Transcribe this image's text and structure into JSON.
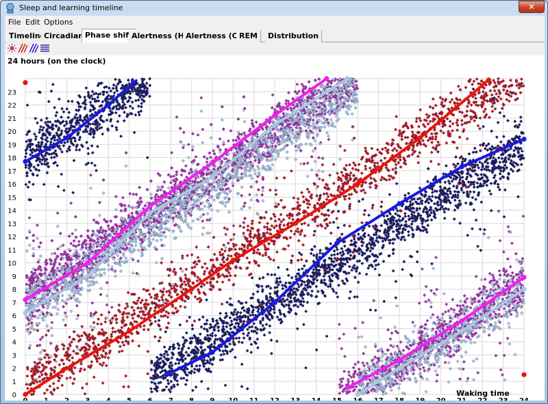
{
  "window": {
    "title": "Sleep and learning timeline",
    "close_label": "✕"
  },
  "menu": [
    "File",
    "Edit",
    "Options"
  ],
  "tabs": [
    "Timeline",
    "Circadian",
    "Phase shift",
    "Alertness (H)",
    "Alertness (C)",
    "REM",
    "Distribution"
  ],
  "active_tab": "Phase shift",
  "toolbar": [
    "sun-icon",
    "red-hatch-icon",
    "blue-hatch-icon",
    "lines-icon"
  ],
  "chart_data": {
    "type": "scatter",
    "title": "24 hours (on the clock)",
    "xlabel": "Waking time",
    "ylabel": "",
    "xlim": [
      0,
      24
    ],
    "ylim": [
      0,
      24
    ],
    "x_ticks": [
      0,
      1,
      2,
      3,
      4,
      5,
      6,
      7,
      8,
      9,
      10,
      11,
      12,
      13,
      14,
      15,
      16,
      17,
      18,
      19,
      20,
      21,
      22,
      23,
      24
    ],
    "y_ticks": [
      0,
      1,
      2,
      3,
      4,
      5,
      6,
      7,
      8,
      9,
      10,
      11,
      12,
      13,
      14,
      15,
      16,
      17,
      18,
      19,
      20,
      21,
      22,
      23
    ],
    "grid": true,
    "colors": {
      "red": "#e8160c",
      "blue": "#1a1ae0",
      "magenta": "#ee22ee",
      "lightblue": "#a9c6e0",
      "navy": "#1a1a60",
      "darkred": "#c01414",
      "purple": "#b030b0"
    },
    "series": [
      {
        "color": "red",
        "segments": [
          {
            "x": [
              0,
              1.8,
              5,
              8,
              10,
              13,
              16,
              19,
              22.3
            ],
            "y": [
              0,
              1.8,
              4.8,
              8,
              10.2,
              13,
              16,
              19.5,
              23.9
            ]
          },
          {
            "x": [
              0
            ],
            "y": [
              23.7
            ]
          },
          {
            "x": [
              24
            ],
            "y": [
              1.5
            ]
          }
        ]
      },
      {
        "color": "blue",
        "segments": [
          {
            "x": [
              0,
              2,
              4,
              5.2
            ],
            "y": [
              17.7,
              19.5,
              22,
              23.7
            ]
          },
          {
            "x": [
              6.8,
              9,
              12,
              15,
              18,
              21,
              24
            ],
            "y": [
              1.5,
              3.2,
              7,
              11.5,
              14.5,
              17.3,
              19.4
            ]
          }
        ]
      },
      {
        "color": "magenta",
        "segments": [
          {
            "x": [
              0,
              3,
              6,
              9,
              12,
              14.5
            ],
            "y": [
              7.2,
              10,
              14.3,
              17.6,
              21.2,
              24
            ]
          },
          {
            "x": [
              15.5,
              18,
              21,
              24
            ],
            "y": [
              0.5,
              2.6,
              5.6,
              8.9
            ]
          }
        ]
      },
      {
        "color": "lightblue",
        "segments": [
          {
            "x": [
              0,
              3,
              6,
              9,
              12,
              15.5
            ],
            "y": [
              6.2,
              9,
              13.8,
              16.5,
              20.5,
              24
            ]
          },
          {
            "x": [
              16,
              18,
              21,
              24
            ],
            "y": [
              0,
              2,
              4.8,
              8
            ]
          }
        ]
      }
    ],
    "scatter_bands": [
      {
        "color": "navy",
        "slope": 1.0,
        "intercept": 18,
        "xmin": 0,
        "xmax": 6,
        "count": 700
      },
      {
        "color": "navy",
        "slope": 1.0,
        "intercept": -5,
        "xmin": 6,
        "xmax": 24,
        "count": 2000
      },
      {
        "color": "darkred",
        "slope": 1.0,
        "intercept": 0.5,
        "xmin": 0,
        "xmax": 24,
        "count": 1800
      },
      {
        "color": "purple",
        "slope": 1.05,
        "intercept": 7.5,
        "xmin": 0,
        "xmax": 16,
        "count": 2500
      },
      {
        "color": "purple",
        "slope": 1.0,
        "intercept": -15.5,
        "xmin": 15,
        "xmax": 24,
        "count": 900
      },
      {
        "color": "lightblue",
        "slope": 1.05,
        "intercept": 6.5,
        "xmin": 0,
        "xmax": 16,
        "count": 1500
      },
      {
        "color": "lightblue",
        "slope": 1.0,
        "intercept": -16,
        "xmin": 16,
        "xmax": 24,
        "count": 600
      }
    ]
  }
}
